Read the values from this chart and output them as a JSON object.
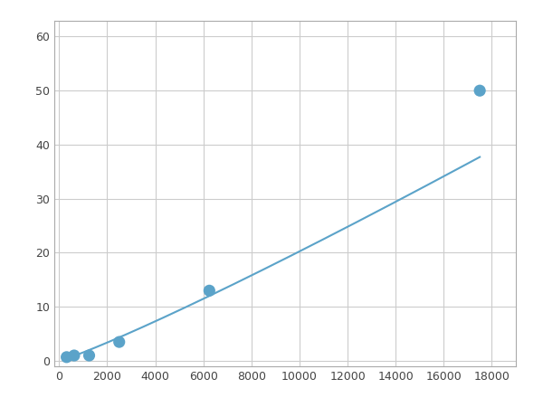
{
  "x_points": [
    312.5,
    625,
    1250,
    2500,
    6250,
    17500
  ],
  "y_points": [
    0.7,
    1.0,
    1.0,
    3.5,
    13.0,
    50.0
  ],
  "line_color": "#5ba3c9",
  "marker_color": "#5ba3c9",
  "marker_size": 6,
  "line_width": 1.5,
  "xlim": [
    -200,
    19000
  ],
  "ylim": [
    -1,
    63
  ],
  "xticks": [
    0,
    2000,
    4000,
    6000,
    8000,
    10000,
    12000,
    14000,
    16000,
    18000
  ],
  "yticks": [
    0,
    10,
    20,
    30,
    40,
    50,
    60
  ],
  "grid_color": "#cccccc",
  "background_color": "#ffffff",
  "figsize": [
    6.0,
    4.5
  ],
  "dpi": 100
}
